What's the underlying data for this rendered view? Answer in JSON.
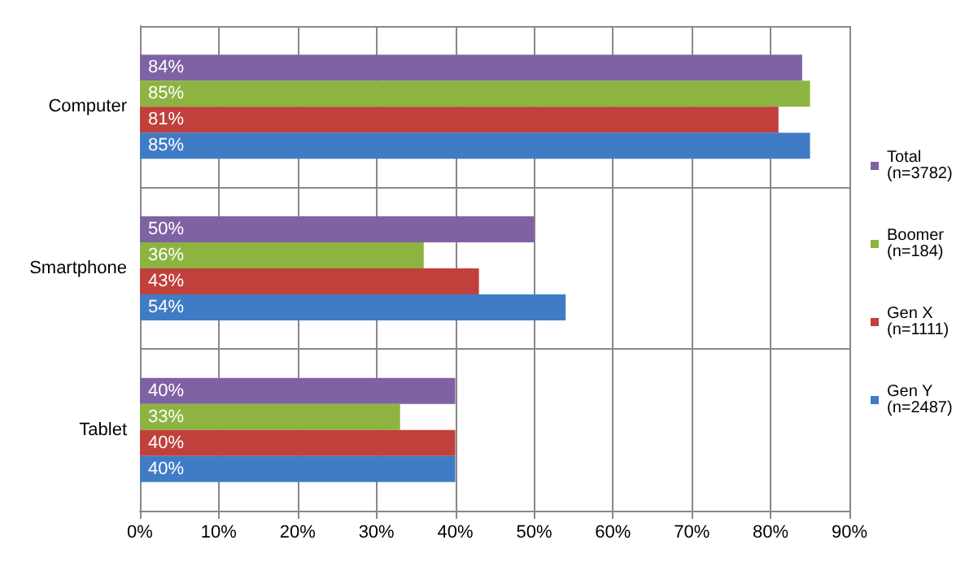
{
  "chart_data": {
    "type": "bar",
    "orientation": "horizontal",
    "categories": [
      "Computer",
      "Smartphone",
      "Tablet"
    ],
    "series": [
      {
        "name": "Total (n=3782)",
        "color": "#7f62a3",
        "values": [
          84,
          50,
          40
        ],
        "value_labels": [
          "84%",
          "50%",
          "40%"
        ]
      },
      {
        "name": "Boomer (n=184)",
        "color": "#8db440",
        "values": [
          85,
          36,
          33
        ],
        "value_labels": [
          "85%",
          "36%",
          "33%"
        ]
      },
      {
        "name": "Gen X (n=1111)",
        "color": "#c0403c",
        "values": [
          81,
          43,
          40
        ],
        "value_labels": [
          "81%",
          "43%",
          "40%"
        ]
      },
      {
        "name": "Gen Y (n=2487)",
        "color": "#3f7cc5",
        "values": [
          85,
          54,
          40
        ],
        "value_labels": [
          "85%",
          "54%",
          "40%"
        ]
      }
    ],
    "xlim": [
      0,
      90
    ],
    "xticks": [
      {
        "value": 0,
        "label": "0%"
      },
      {
        "value": 10,
        "label": "10%"
      },
      {
        "value": 20,
        "label": "20%"
      },
      {
        "value": 30,
        "label": "30%"
      },
      {
        "value": 40,
        "label": "40%"
      },
      {
        "value": 50,
        "label": "50%"
      },
      {
        "value": 60,
        "label": "60%"
      },
      {
        "value": 70,
        "label": "70%"
      },
      {
        "value": 80,
        "label": "80%"
      },
      {
        "value": 90,
        "label": "90%"
      }
    ],
    "grid": "x",
    "legend": "right"
  }
}
